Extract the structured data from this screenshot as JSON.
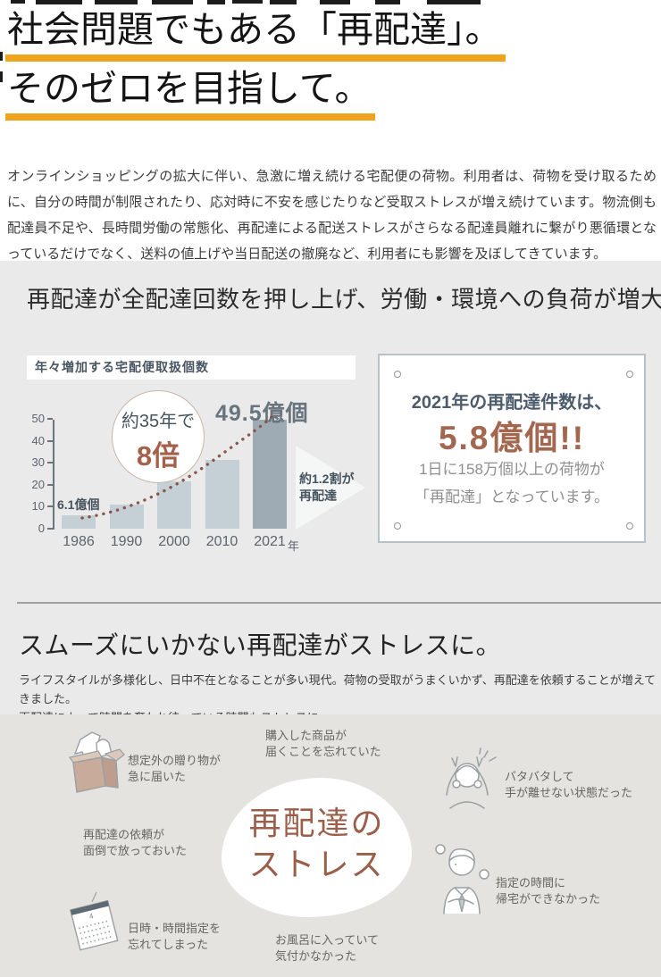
{
  "hero": {
    "title_line1": "社会問題でもある「再配達」。",
    "title_line2": "そのゼロを目指して。",
    "underline_color": "#f0a41e",
    "intro": "オンラインショッピングの拡大に伴い、急激に増え続ける宅配便の荷物。利用者は、荷物を受け取るために、自分の時間が制限されたり、応対時に不安を感じたりなど受取ストレスが増え続けています。物流側も配達員不足や、長時間労働の常態化、再配達による配送ストレスがさらなる配達員離れに繋がり悪循環となっているだけでなく、送料の値上げや当日配送の撤廃など、利用者にも影響を及ぼしてきています。"
  },
  "impact_section": {
    "heading": "再配達が全配達回数を押し上げ、労働・環境への負荷が増大",
    "chart_label": "年々増加する宅配便取扱個数",
    "circle_line1": "約35年で",
    "circle_line2": "8倍",
    "first_bar_label": "6.1億個",
    "peak_label": "49.5億個",
    "arrow_line1": "約1.2割が",
    "arrow_line2": "再配達",
    "unit_suffix": "年"
  },
  "chart_data": {
    "type": "bar",
    "title": "年々増加する宅配便取扱個数",
    "categories": [
      "1986",
      "1990",
      "2000",
      "2010",
      "2021"
    ],
    "values": [
      6.1,
      11,
      21.5,
      31.5,
      49.5
    ],
    "unit": "億個",
    "yticks": [
      0,
      10,
      20,
      30,
      40,
      50
    ],
    "ylim": [
      0,
      50
    ],
    "xlabel_suffix": "年",
    "highlight_index": 4,
    "bar_color": "#c5cfd6",
    "highlight_color": "#9fabb4",
    "trend_color": "#8a564a",
    "grid": false,
    "annotations": [
      "約35年で8倍",
      "6.1億個",
      "49.5億個",
      "約1.2割が再配達"
    ]
  },
  "stat_box": {
    "line1": "2021年の再配達件数は、",
    "stat": "5.8億個!!",
    "desc_line1": "1日に158万個以上の荷物が",
    "desc_line2": "「再配達」となっています。"
  },
  "stress_section": {
    "heading": "スムーズにいかない再配達がストレスに。",
    "body_line1": "ライフスタイルが多様化し、日中不在となることが多い現代。荷物の受取がうまくいかず、再配達を依頼することが増えてきました。",
    "body_line2": "再配達によって時間を奪われ待っている時間もストレスに。",
    "center_line1": "再配達の",
    "center_line2": "ストレス",
    "calendar_month": "4",
    "items": [
      {
        "lines": [
          "想定外の贈り物が",
          "急に届いた"
        ]
      },
      {
        "lines": [
          "購入した商品が",
          "届くことを忘れていた"
        ]
      },
      {
        "lines": [
          "再配達の依頼が",
          "面倒で放っておいた"
        ]
      },
      {
        "lines": [
          "日時・時間指定を",
          "忘れてしまった"
        ]
      },
      {
        "lines": [
          "お風呂に入っていて",
          "気付かなかった"
        ]
      },
      {
        "lines": [
          "バタバタして",
          "手が離せない状態だった"
        ]
      },
      {
        "lines": [
          "指定の時間に",
          "帰宅ができなかった"
        ]
      }
    ]
  }
}
